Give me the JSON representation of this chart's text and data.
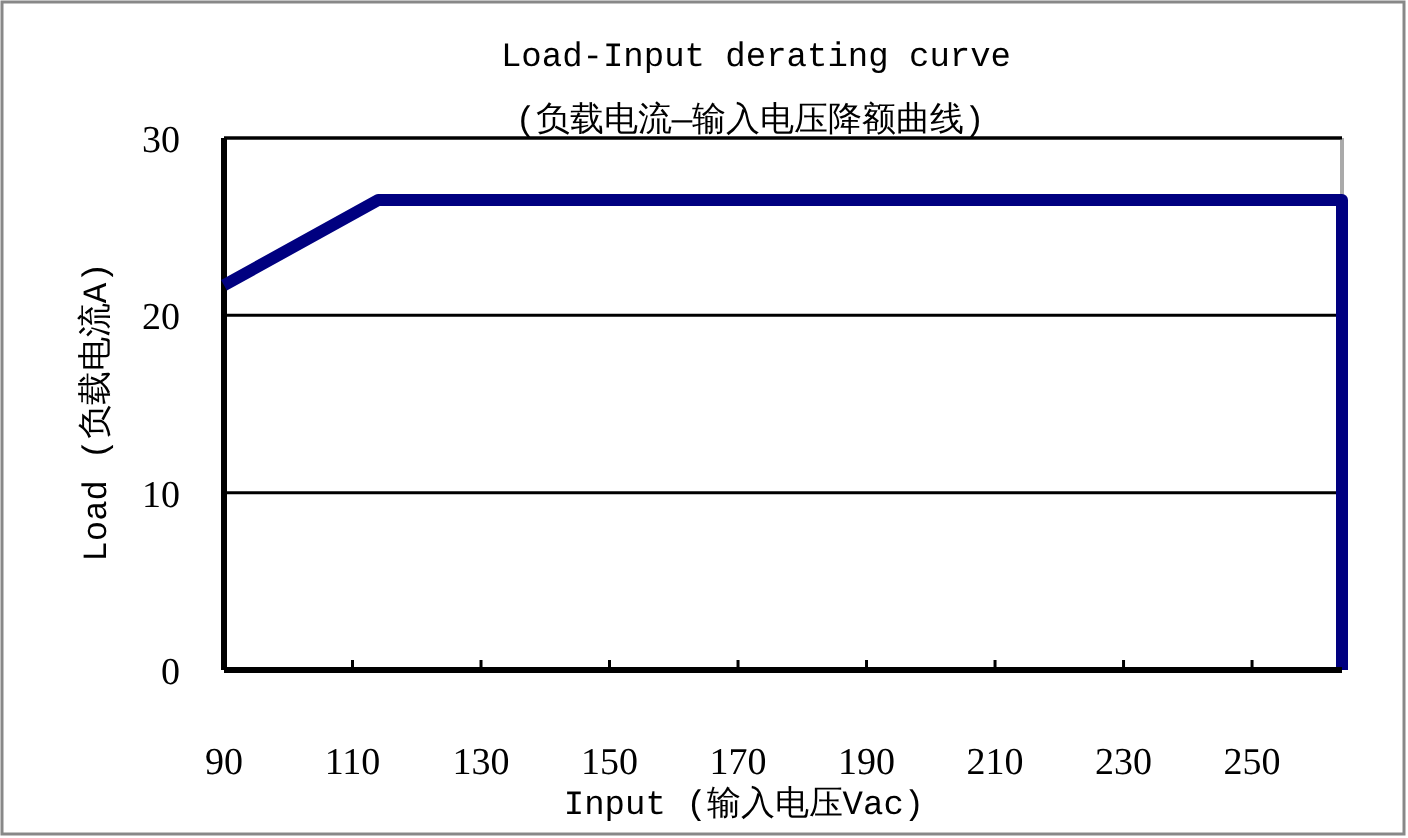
{
  "chart_data": {
    "type": "line",
    "title": "Load-Input derating curve",
    "subtitle": "(负载电流—输入电压降额曲线)",
    "xlabel": "Input  (输入电压Vac)",
    "ylabel": "Load (负载电流A)",
    "x": [
      90,
      114,
      264,
      264
    ],
    "series": [
      {
        "color": "#000080",
        "values": [
          21.7,
          26.5,
          26.5,
          0
        ]
      }
    ],
    "xlim": [
      90,
      264
    ],
    "xticks": [
      90,
      110,
      130,
      150,
      170,
      190,
      210,
      230,
      250
    ],
    "ylim": [
      0,
      30
    ],
    "yticks": [
      0,
      10,
      20,
      30
    ],
    "grid": "y",
    "marker": "none",
    "line_style": "solid"
  }
}
